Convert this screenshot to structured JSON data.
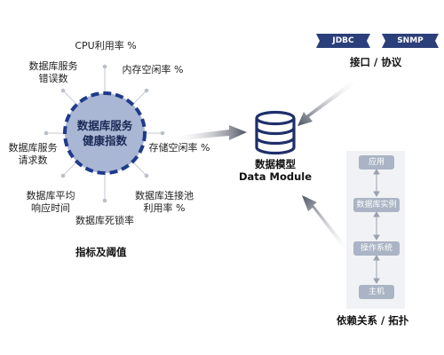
{
  "hub": {
    "line1": "数据库服务",
    "line2": "健康指数"
  },
  "metrics": {
    "cpu": "CPU利用率 %",
    "memory": "内存空闲率 %",
    "storage": "存储空闲率 %",
    "connection_line1": "数据库连接池",
    "connection_line2": "利用率 %",
    "deadlock": "数据库死锁率",
    "response_line1": "数据库平均",
    "response_line2": "响应时间",
    "requests_line1": "数据库服务",
    "requests_line2": "请求数",
    "errors_line1": "数据库服务",
    "errors_line2": "错误数"
  },
  "captions": {
    "indicators": "指标及阈值",
    "interfaces": "接口 / 协议",
    "dependencies": "依赖关系 / 拓扑"
  },
  "data_module": {
    "line1": "数据模型",
    "line2": "Data Module"
  },
  "protocols": [
    "JDBC",
    "SNMP"
  ],
  "layers": [
    "应用",
    "数据库实例",
    "操作系统",
    "主机"
  ],
  "colors": {
    "hub_fill": "#a9b6d4",
    "hub_ring": "#1f3a8a",
    "protocol_badge": "#2b3f7a",
    "layer_box": "#aab4c4",
    "connector": "#bfc5cf",
    "arrow": "#5a6170"
  }
}
